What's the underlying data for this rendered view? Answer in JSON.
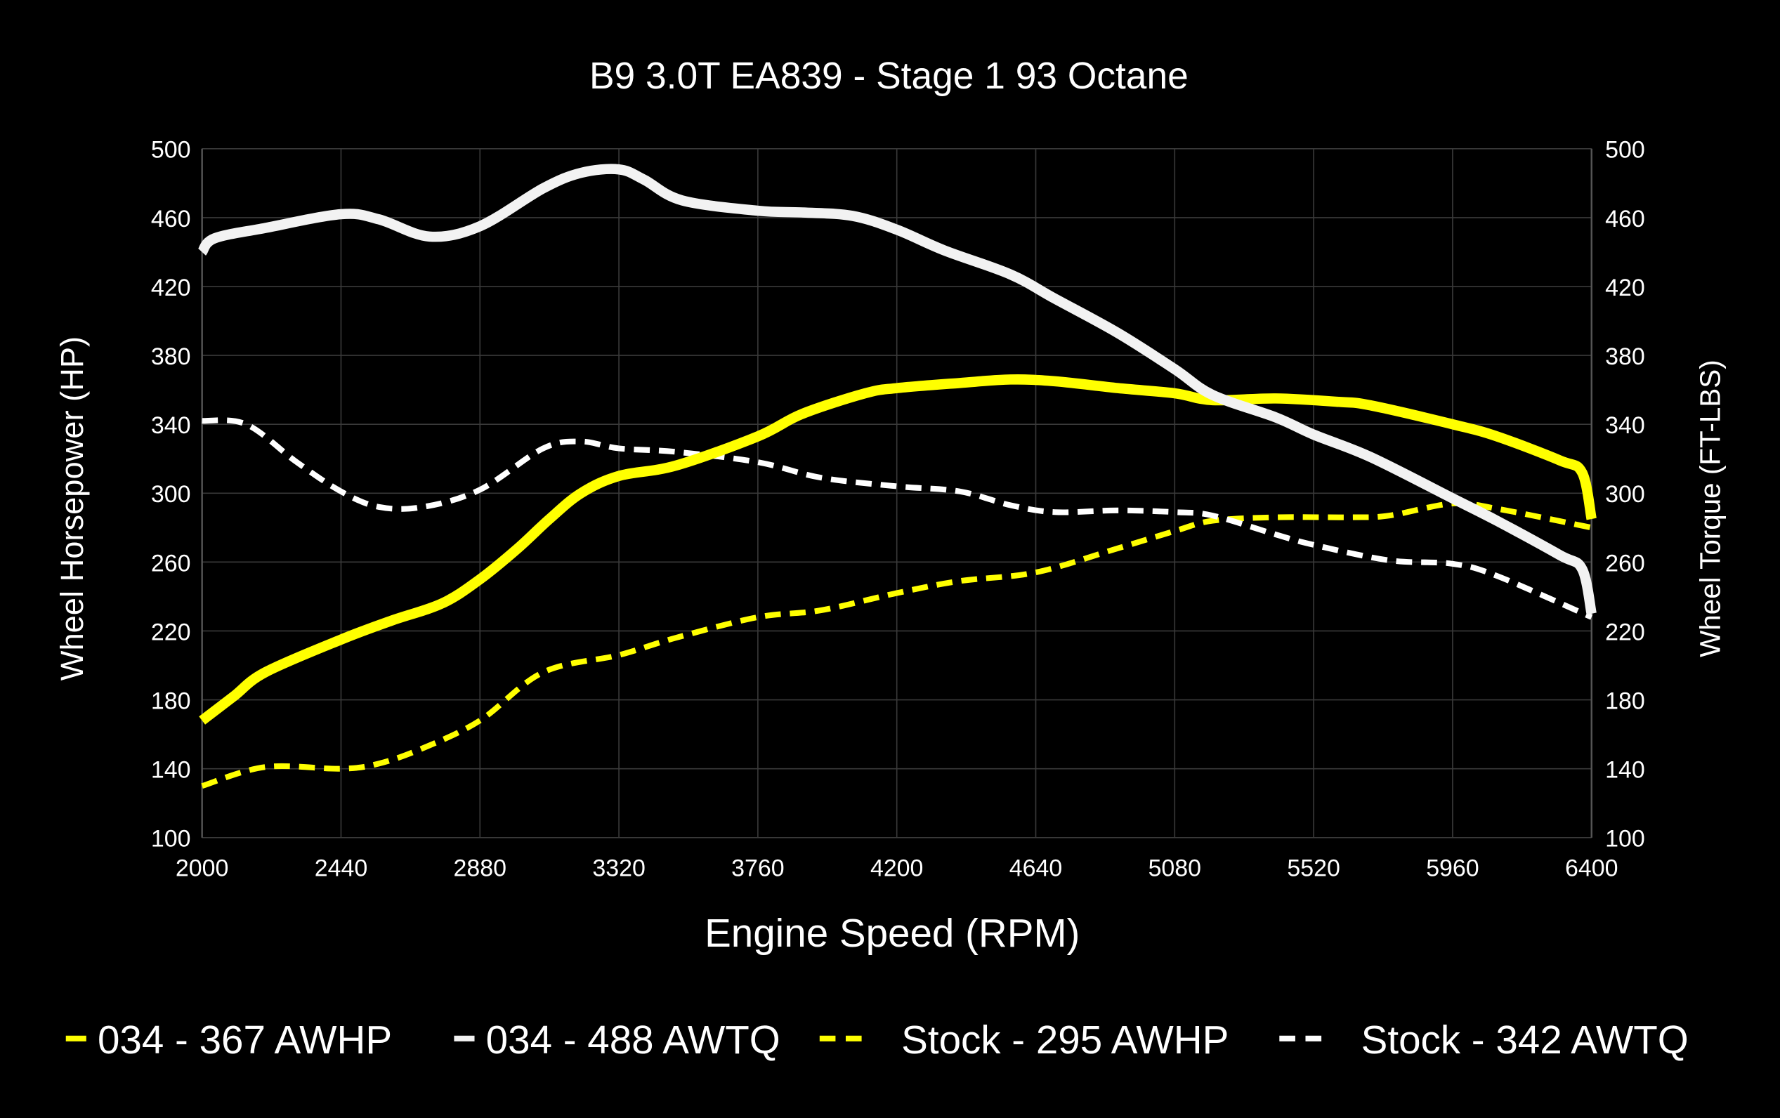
{
  "chart_data": {
    "type": "line",
    "title": "B9 3.0T EA839 - Stage 1 93 Octane",
    "xlabel": "Engine Speed (RPM)",
    "ylabel": "Wheel Horsepower (HP)",
    "y2label": "Wheel Torque (FT-LBS)",
    "xlim": [
      2000,
      6400
    ],
    "ylim": [
      100,
      500
    ],
    "y2lim": [
      100,
      500
    ],
    "xticks": [
      2000,
      2440,
      2880,
      3320,
      3760,
      4200,
      4640,
      5080,
      5520,
      5960,
      6400
    ],
    "yticks": [
      100,
      140,
      180,
      220,
      260,
      300,
      340,
      380,
      420,
      460,
      500
    ],
    "grid": true,
    "legend_position": "bottom",
    "background": "#000000",
    "series": [
      {
        "name": "034 - 367 AWHP",
        "color": "#ffff00",
        "style": "solid",
        "axis": "left",
        "x": [
          2000,
          2100,
          2200,
          2440,
          2600,
          2760,
          2880,
          3000,
          3100,
          3200,
          3320,
          3500,
          3760,
          3900,
          4100,
          4200,
          4400,
          4560,
          4700,
          4900,
          5080,
          5200,
          5400,
          5600,
          5700,
          5960,
          6100,
          6300,
          6370,
          6400
        ],
        "y": [
          168,
          182,
          196,
          215,
          226,
          236,
          250,
          268,
          285,
          300,
          310,
          316,
          333,
          346,
          358,
          361,
          364,
          366,
          365,
          361,
          358,
          354,
          355,
          353,
          351,
          340,
          333,
          319,
          312,
          285
        ]
      },
      {
        "name": "034 - 488 AWTQ",
        "color": "#f2f2f2",
        "style": "solid",
        "axis": "right",
        "x": [
          2000,
          2040,
          2200,
          2440,
          2560,
          2720,
          2880,
          3080,
          3200,
          3320,
          3400,
          3520,
          3760,
          3900,
          4060,
          4200,
          4350,
          4560,
          4700,
          4900,
          5080,
          5200,
          5400,
          5520,
          5700,
          5960,
          6100,
          6300,
          6370,
          6400
        ],
        "y": [
          440,
          448,
          454,
          462,
          459,
          449,
          455,
          477,
          486,
          488,
          482,
          470,
          464,
          463,
          461,
          453,
          441,
          427,
          413,
          393,
          372,
          357,
          344,
          334,
          321,
          297,
          284,
          264,
          256,
          230
        ]
      },
      {
        "name": "Stock - 295 AWHP",
        "color": "#ffff00",
        "style": "dashed",
        "axis": "left",
        "x": [
          2000,
          2200,
          2440,
          2560,
          2700,
          2880,
          3080,
          3320,
          3500,
          3760,
          3960,
          4200,
          4400,
          4640,
          4900,
          5080,
          5200,
          5400,
          5640,
          5760,
          5960,
          6100,
          6400
        ],
        "y": [
          130,
          141,
          140,
          143,
          152,
          168,
          196,
          206,
          216,
          228,
          232,
          242,
          249,
          254,
          268,
          278,
          284,
          286,
          286,
          287,
          294,
          291,
          280
        ]
      },
      {
        "name": "Stock - 342 AWTQ",
        "color": "#ffffff",
        "style": "dashed",
        "axis": "right",
        "x": [
          2000,
          2140,
          2300,
          2440,
          2560,
          2700,
          2880,
          3080,
          3200,
          3320,
          3500,
          3760,
          3960,
          4200,
          4400,
          4560,
          4700,
          4900,
          5080,
          5200,
          5400,
          5520,
          5760,
          5960,
          6100,
          6400
        ],
        "y": [
          342,
          340,
          318,
          301,
          292,
          292,
          302,
          326,
          330,
          326,
          324,
          318,
          309,
          304,
          301,
          293,
          289,
          290,
          289,
          287,
          276,
          270,
          261,
          259,
          252,
          228
        ]
      }
    ]
  }
}
